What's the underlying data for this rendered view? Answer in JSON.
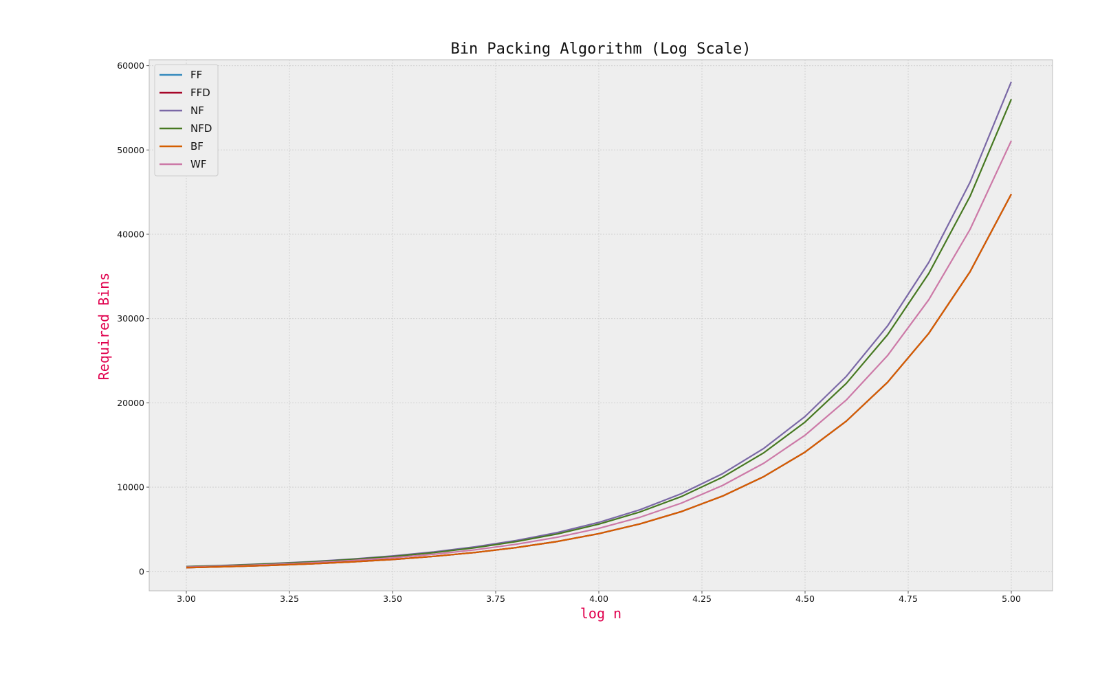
{
  "chart_data": {
    "type": "line",
    "title": "Bin Packing Algorithm (Log Scale)",
    "xlabel": "log n",
    "ylabel": "Required Bins",
    "xlim": [
      2.91,
      5.1
    ],
    "ylim": [
      -2300,
      60700
    ],
    "xticks": [
      3.0,
      3.25,
      3.5,
      3.75,
      4.0,
      4.25,
      4.5,
      4.75,
      5.0
    ],
    "xtick_labels": [
      "3.00",
      "3.25",
      "3.50",
      "3.75",
      "4.00",
      "4.25",
      "4.50",
      "4.75",
      "5.00"
    ],
    "yticks": [
      0,
      10000,
      20000,
      30000,
      40000,
      50000,
      60000
    ],
    "ytick_labels": [
      "0",
      "10000",
      "20000",
      "30000",
      "40000",
      "50000",
      "60000"
    ],
    "grid": true,
    "legend_position": "top-left",
    "background_color": "#eeeeee",
    "x": [
      3.0,
      3.1,
      3.2,
      3.3,
      3.4,
      3.5,
      3.6,
      3.7,
      3.8,
      3.9,
      4.0,
      4.1,
      4.2,
      4.3,
      4.4,
      4.5,
      4.6,
      4.7,
      4.8,
      4.9,
      5.0
    ],
    "series": [
      {
        "name": "FF",
        "color": "#348abd",
        "values": [
          450,
          570,
          715,
          900,
          1130,
          1420,
          1790,
          2250,
          2830,
          3560,
          4480,
          5640,
          7100,
          8940,
          11250,
          14160,
          17830,
          22440,
          28250,
          35560,
          44770
        ]
      },
      {
        "name": "FFD",
        "color": "#a60628",
        "values": [
          450,
          570,
          715,
          900,
          1130,
          1420,
          1790,
          2250,
          2830,
          3560,
          4480,
          5640,
          7100,
          8940,
          11250,
          14160,
          17830,
          22440,
          28250,
          35560,
          44770
        ]
      },
      {
        "name": "NF",
        "color": "#7a68a6",
        "values": [
          580,
          730,
          920,
          1160,
          1460,
          1840,
          2320,
          2920,
          3670,
          4620,
          5820,
          7320,
          9220,
          11600,
          14600,
          18380,
          23140,
          29130,
          36670,
          46170,
          58100
        ]
      },
      {
        "name": "NFD",
        "color": "#467821",
        "values": [
          560,
          705,
          890,
          1120,
          1410,
          1770,
          2230,
          2810,
          3540,
          4450,
          5610,
          7060,
          8880,
          11180,
          14080,
          17720,
          22310,
          28080,
          35350,
          44500,
          56030
        ]
      },
      {
        "name": "BF",
        "color": "#d55e00",
        "values": [
          450,
          570,
          715,
          900,
          1130,
          1420,
          1790,
          2250,
          2830,
          3560,
          4480,
          5640,
          7100,
          8940,
          11250,
          14160,
          17830,
          22440,
          28250,
          35560,
          44770
        ]
      },
      {
        "name": "WF",
        "color": "#cc79a7",
        "values": [
          510,
          645,
          810,
          1020,
          1285,
          1620,
          2035,
          2565,
          3225,
          4060,
          5110,
          6430,
          8100,
          10200,
          12840,
          16160,
          20340,
          25610,
          32240,
          40580,
          51100
        ]
      }
    ]
  }
}
